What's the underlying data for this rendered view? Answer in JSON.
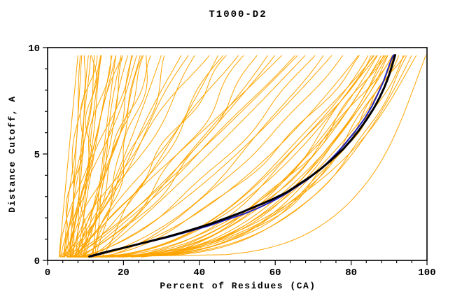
{
  "chart_data": {
    "type": "line",
    "title": "T1000-D2",
    "xlabel": "Percent of Residues (CA)",
    "ylabel": "Distance Cutoff, A",
    "xlim": [
      0,
      100
    ],
    "ylim": [
      0,
      10
    ],
    "grid": false,
    "legend": "none",
    "colors": {
      "ensemble": "#ffa500",
      "highlight": "#000000",
      "secondary": "#2020c0",
      "frame": "#000000"
    },
    "x_major_ticks": [
      {
        "v": 0,
        "label": "0"
      },
      {
        "v": 20,
        "label": "20"
      },
      {
        "v": 40,
        "label": "40"
      },
      {
        "v": 60,
        "label": "60"
      },
      {
        "v": 80,
        "label": "80"
      },
      {
        "v": 100,
        "label": "100"
      }
    ],
    "x_minor_ticks": [
      4,
      8,
      12,
      16,
      24,
      28,
      32,
      36,
      44,
      48,
      52,
      56,
      64,
      68,
      72,
      76,
      84,
      88,
      92,
      96
    ],
    "y_major_ticks": [
      {
        "v": 0,
        "label": "0"
      },
      {
        "v": 5,
        "label": "5"
      },
      {
        "v": 10,
        "label": "10"
      }
    ],
    "y_minor_ticks": [
      1,
      2,
      3,
      4,
      6,
      7,
      8,
      9
    ],
    "series": {
      "best_model": {
        "name": "highlighted-model-curve",
        "color_key": "highlight",
        "points": [
          [
            11,
            0.18
          ],
          [
            13,
            0.28
          ],
          [
            16,
            0.42
          ],
          [
            19,
            0.55
          ],
          [
            23,
            0.72
          ],
          [
            27,
            0.9
          ],
          [
            31,
            1.08
          ],
          [
            35,
            1.28
          ],
          [
            39,
            1.5
          ],
          [
            43,
            1.72
          ],
          [
            47,
            1.98
          ],
          [
            51,
            2.25
          ],
          [
            55,
            2.55
          ],
          [
            59,
            2.85
          ],
          [
            63,
            3.2
          ],
          [
            66,
            3.55
          ],
          [
            69,
            3.9
          ],
          [
            72,
            4.3
          ],
          [
            75,
            4.75
          ],
          [
            78,
            5.25
          ],
          [
            80,
            5.65
          ],
          [
            82,
            6.1
          ],
          [
            84,
            6.6
          ],
          [
            86,
            7.15
          ],
          [
            87.5,
            7.65
          ],
          [
            88.8,
            8.15
          ],
          [
            89.8,
            8.6
          ],
          [
            90.6,
            9.05
          ],
          [
            91.2,
            9.4
          ],
          [
            91.6,
            9.65
          ]
        ]
      },
      "reference_model": {
        "name": "secondary-model-curve",
        "color_key": "secondary",
        "points": [
          [
            11.5,
            0.18
          ],
          [
            14,
            0.3
          ],
          [
            18,
            0.5
          ],
          [
            22,
            0.68
          ],
          [
            27,
            0.88
          ],
          [
            32,
            1.1
          ],
          [
            37,
            1.35
          ],
          [
            42,
            1.6
          ],
          [
            47,
            1.9
          ],
          [
            52,
            2.2
          ],
          [
            56,
            2.5
          ],
          [
            60,
            2.85
          ],
          [
            63,
            3.15
          ],
          [
            66,
            3.5
          ],
          [
            68.5,
            3.8
          ],
          [
            71,
            4.15
          ],
          [
            73.5,
            4.55
          ],
          [
            76,
            5.0
          ],
          [
            78.5,
            5.5
          ],
          [
            81,
            6.05
          ],
          [
            83.5,
            6.65
          ],
          [
            85.5,
            7.25
          ],
          [
            87,
            7.8
          ],
          [
            88.5,
            8.4
          ],
          [
            89.7,
            9.0
          ],
          [
            90.6,
            9.45
          ],
          [
            91.2,
            9.65
          ]
        ]
      },
      "ensemble_curves": {
        "name": "server-model-curves",
        "color_key": "ensemble",
        "y_bottom": 0.15,
        "y_top": 9.65,
        "params_format": [
          "x_at_bottom",
          "x_at_top",
          "shape_exponent"
        ],
        "params": [
          [
            3,
            8,
            1.0
          ],
          [
            4,
            9,
            0.8
          ],
          [
            5,
            10,
            1.2
          ],
          [
            3.5,
            12,
            0.9
          ],
          [
            4.5,
            14,
            1.1
          ],
          [
            5.5,
            11,
            0.7
          ],
          [
            6,
            13,
            1.3
          ],
          [
            4,
            16,
            0.8
          ],
          [
            5,
            18,
            1.0
          ],
          [
            6,
            20,
            0.6
          ],
          [
            7,
            15,
            1.2
          ],
          [
            3,
            22,
            0.9
          ],
          [
            8,
            17,
            1.1
          ],
          [
            4,
            25,
            0.7
          ],
          [
            5,
            28,
            1.0
          ],
          [
            6,
            24,
            1.3
          ],
          [
            7,
            30,
            0.8
          ],
          [
            9,
            21,
            0.9
          ],
          [
            10,
            26,
            1.1
          ],
          [
            8,
            12,
            0.6
          ],
          [
            9,
            14,
            1.4
          ],
          [
            10,
            19,
            0.75
          ],
          [
            11,
            23,
            1.0
          ],
          [
            12,
            27,
            0.85
          ],
          [
            6,
            9,
            1.1
          ],
          [
            7,
            11,
            0.95
          ],
          [
            3.5,
            20,
            1.2
          ],
          [
            4.5,
            32,
            0.65
          ],
          [
            12,
            18,
            1.2
          ],
          [
            13,
            24,
            0.9
          ],
          [
            4,
            35,
            0.8
          ],
          [
            5,
            40,
            0.9
          ],
          [
            6,
            45,
            0.7
          ],
          [
            7,
            50,
            1.0
          ],
          [
            5,
            55,
            0.6
          ],
          [
            8,
            38,
            1.1
          ],
          [
            6,
            60,
            0.8
          ],
          [
            9,
            65,
            0.9
          ],
          [
            7,
            70,
            0.65
          ],
          [
            10,
            48,
            1.0
          ],
          [
            8,
            75,
            0.7
          ],
          [
            11,
            58,
            0.85
          ],
          [
            6,
            42,
            1.2
          ],
          [
            9,
            52,
            0.75
          ],
          [
            12,
            68,
            0.9
          ],
          [
            7,
            62,
            1.05
          ],
          [
            10,
            72,
            0.6
          ],
          [
            13,
            46,
            0.95
          ],
          [
            5,
            66,
            0.85
          ],
          [
            14,
            78,
            0.7
          ],
          [
            8,
            84,
            0.45
          ],
          [
            9,
            86,
            0.4
          ],
          [
            10,
            88,
            0.38
          ],
          [
            11,
            90,
            0.35
          ],
          [
            12,
            92,
            0.32
          ],
          [
            10,
            85,
            0.5
          ],
          [
            12,
            87,
            0.42
          ],
          [
            14,
            89,
            0.36
          ],
          [
            9,
            91,
            0.3
          ],
          [
            13,
            93,
            0.34
          ],
          [
            11,
            86,
            0.48
          ],
          [
            15,
            90,
            0.4
          ],
          [
            8,
            94,
            0.33
          ],
          [
            16,
            88,
            0.45
          ],
          [
            10,
            96,
            0.3
          ],
          [
            10,
            100,
            0.2
          ],
          [
            18,
            92,
            0.38
          ],
          [
            20,
            90,
            0.5
          ],
          [
            7,
            82,
            0.55
          ],
          [
            14,
            95,
            0.31
          ],
          [
            6,
            98,
            0.35
          ],
          [
            17,
            85,
            0.52
          ],
          [
            22,
            91,
            0.45
          ],
          [
            25,
            89,
            0.55
          ],
          [
            11,
            83,
            0.6
          ]
        ]
      }
    }
  }
}
